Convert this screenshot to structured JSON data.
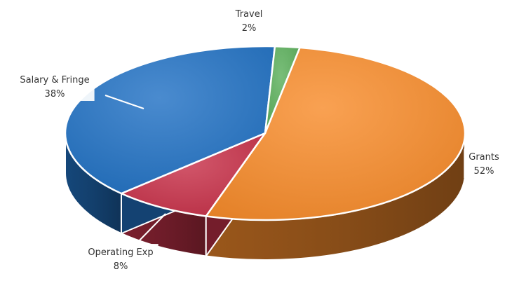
{
  "chart_data": {
    "type": "pie",
    "title": "",
    "style": "3d",
    "categories": [
      "Grants",
      "Operating Exp",
      "Salary & Fringe",
      "Travel"
    ],
    "values": [
      52,
      8,
      38,
      2
    ],
    "value_labels": [
      "52%",
      "8%",
      "38%",
      "2%"
    ],
    "colors": [
      "#f88c2c",
      "#c8324a",
      "#2272c4",
      "#5cb05c"
    ],
    "legend": "none"
  }
}
